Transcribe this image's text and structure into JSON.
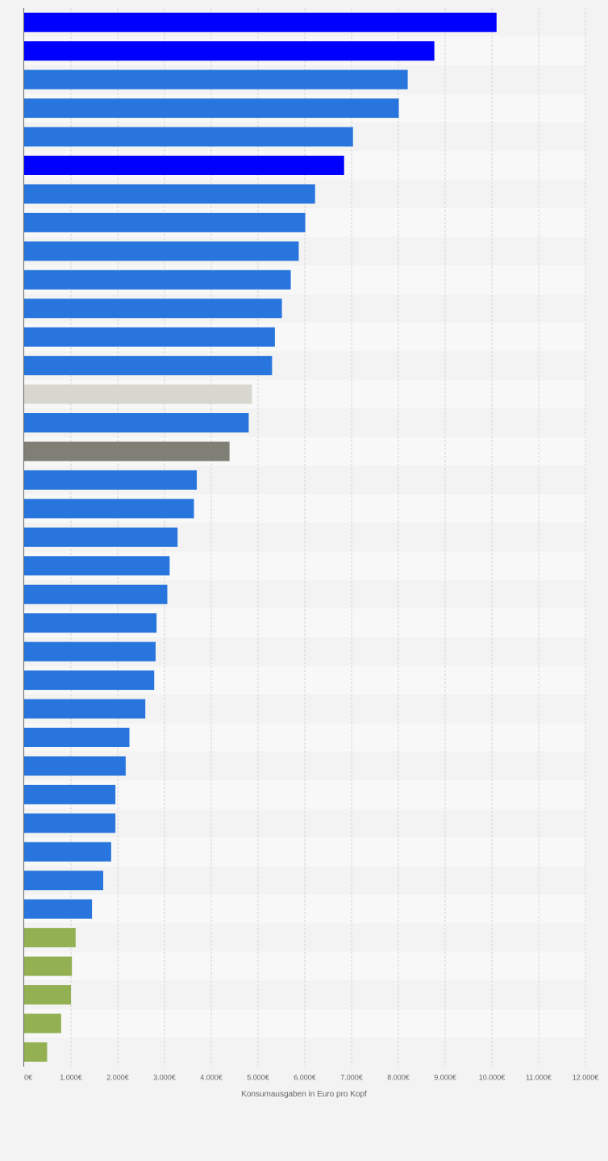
{
  "chart_data": {
    "type": "bar",
    "orientation": "horizontal",
    "title": "",
    "xlabel": "Konsumausgaben in Euro pro Kopf",
    "ylabel": "",
    "xlim": [
      0,
      12000
    ],
    "grid": true,
    "legend": "none",
    "x_ticks": [
      "0€",
      "1.000€",
      "2.000€",
      "3.000€",
      "4.000€",
      "5.000€",
      "6.000€",
      "7.000€",
      "8.000€",
      "9.000€",
      "10.000€",
      "11.000€",
      "12.000€"
    ],
    "colors": {
      "highlight": "#0000ff",
      "default": "#2876dd",
      "light": "#d8d7cf",
      "dark": "#7f7f75",
      "green": "#93b153"
    },
    "bars": [
      {
        "value": 10100,
        "color": "highlight"
      },
      {
        "value": 8770,
        "color": "highlight"
      },
      {
        "value": 8200,
        "color": "default"
      },
      {
        "value": 8010,
        "color": "default"
      },
      {
        "value": 7030,
        "color": "default"
      },
      {
        "value": 6840,
        "color": "highlight"
      },
      {
        "value": 6220,
        "color": "default"
      },
      {
        "value": 6010,
        "color": "default"
      },
      {
        "value": 5870,
        "color": "default"
      },
      {
        "value": 5700,
        "color": "default"
      },
      {
        "value": 5510,
        "color": "default"
      },
      {
        "value": 5360,
        "color": "default"
      },
      {
        "value": 5300,
        "color": "default"
      },
      {
        "value": 4870,
        "color": "light"
      },
      {
        "value": 4800,
        "color": "default"
      },
      {
        "value": 4390,
        "color": "dark"
      },
      {
        "value": 3690,
        "color": "default"
      },
      {
        "value": 3630,
        "color": "default"
      },
      {
        "value": 3280,
        "color": "default"
      },
      {
        "value": 3110,
        "color": "default"
      },
      {
        "value": 3060,
        "color": "default"
      },
      {
        "value": 2830,
        "color": "default"
      },
      {
        "value": 2810,
        "color": "default"
      },
      {
        "value": 2780,
        "color": "default"
      },
      {
        "value": 2590,
        "color": "default"
      },
      {
        "value": 2250,
        "color": "default"
      },
      {
        "value": 2170,
        "color": "default"
      },
      {
        "value": 1950,
        "color": "default"
      },
      {
        "value": 1950,
        "color": "default"
      },
      {
        "value": 1860,
        "color": "default"
      },
      {
        "value": 1690,
        "color": "default"
      },
      {
        "value": 1450,
        "color": "default"
      },
      {
        "value": 1100,
        "color": "green"
      },
      {
        "value": 1020,
        "color": "green"
      },
      {
        "value": 1000,
        "color": "green"
      },
      {
        "value": 790,
        "color": "green"
      },
      {
        "value": 490,
        "color": "green"
      }
    ]
  }
}
